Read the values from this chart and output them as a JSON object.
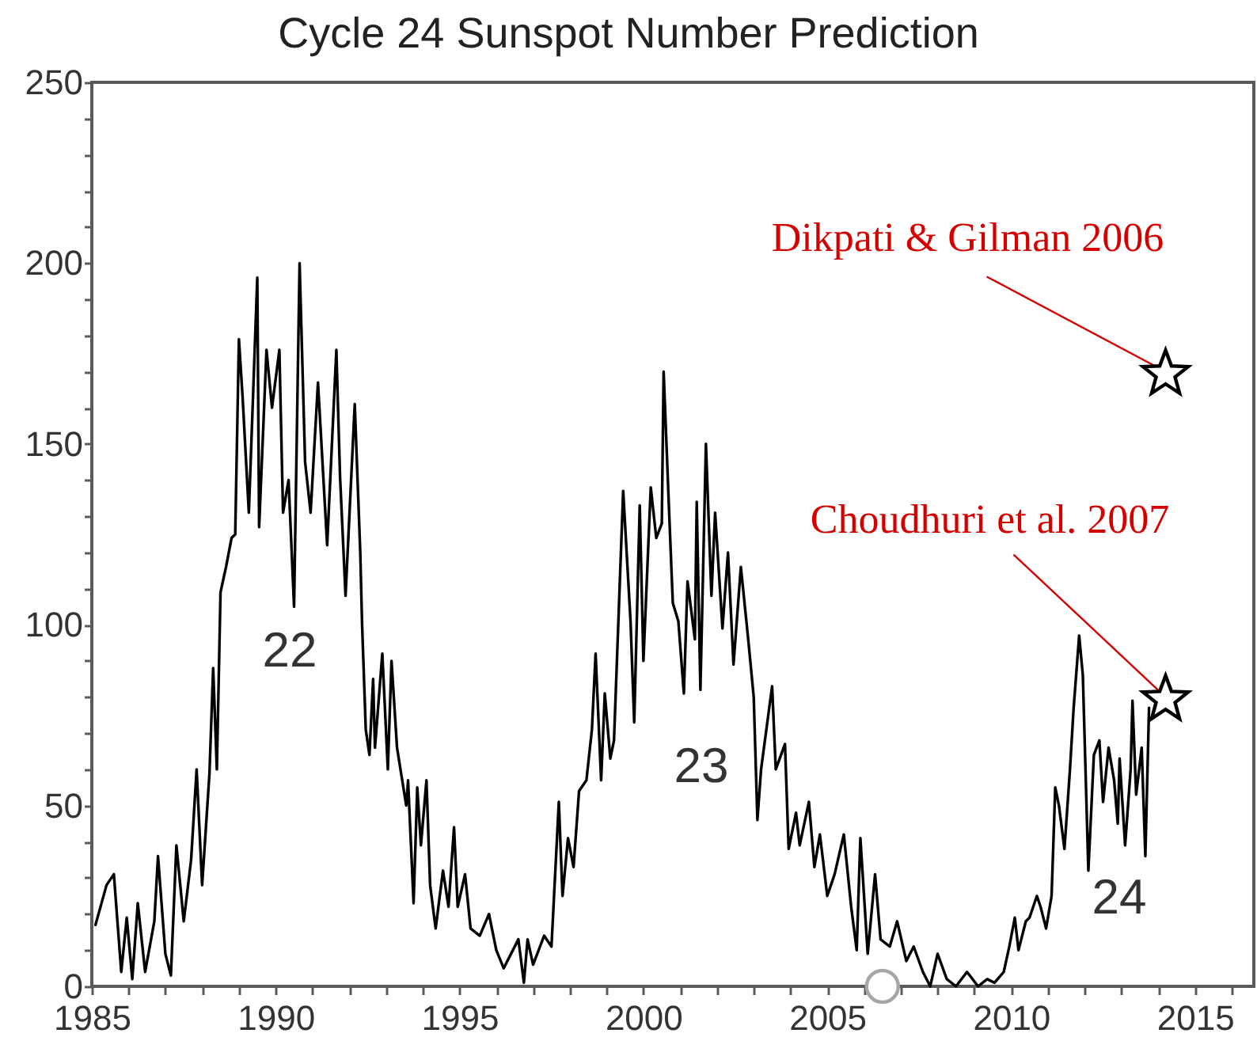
{
  "chart_data": {
    "type": "line",
    "title": "Cycle 24 Sunspot Number Prediction",
    "xlim": [
      1985,
      2016.6
    ],
    "xticks": [
      1985,
      {
        "value": 1986,
        "label": null
      },
      {
        "value": 1987,
        "label": null
      },
      {
        "value": 1988,
        "label": null
      },
      {
        "value": 1989,
        "label": null
      },
      1990,
      {
        "value": 1991,
        "label": null
      },
      {
        "value": 1992,
        "label": null
      },
      {
        "value": 1993,
        "label": null
      },
      {
        "value": 1994,
        "label": null
      },
      1995,
      {
        "value": 1996,
        "label": null
      },
      {
        "value": 1997,
        "label": null
      },
      {
        "value": 1998,
        "label": null
      },
      {
        "value": 1999,
        "label": null
      },
      2000,
      {
        "value": 2001,
        "label": null
      },
      {
        "value": 2002,
        "label": null
      },
      {
        "value": 2003,
        "label": null
      },
      {
        "value": 2004,
        "label": null
      },
      2005,
      {
        "value": 2006,
        "label": null
      },
      {
        "value": 2007,
        "label": null
      },
      {
        "value": 2008,
        "label": null
      },
      {
        "value": 2009,
        "label": null
      },
      2010,
      {
        "value": 2011,
        "label": null
      },
      {
        "value": 2012,
        "label": null
      },
      {
        "value": 2013,
        "label": null
      },
      {
        "value": 2014,
        "label": null
      },
      2015,
      {
        "value": 2016,
        "label": null
      }
    ],
    "ylim": [
      0,
      250
    ],
    "yticks": [
      0,
      {
        "value": 10,
        "label": null
      },
      {
        "value": 20,
        "label": null
      },
      {
        "value": 30,
        "label": null
      },
      {
        "value": 40,
        "label": null
      },
      50,
      {
        "value": 60,
        "label": null
      },
      {
        "value": 70,
        "label": null
      },
      {
        "value": 80,
        "label": null
      },
      {
        "value": 90,
        "label": null
      },
      100,
      {
        "value": 110,
        "label": null
      },
      {
        "value": 120,
        "label": null
      },
      {
        "value": 130,
        "label": null
      },
      {
        "value": 140,
        "label": null
      },
      150,
      {
        "value": 160,
        "label": null
      },
      {
        "value": 170,
        "label": null
      },
      {
        "value": 180,
        "label": null
      },
      {
        "value": 190,
        "label": null
      },
      200,
      {
        "value": 210,
        "label": null
      },
      {
        "value": 220,
        "label": null
      },
      {
        "value": 230,
        "label": null
      },
      {
        "value": 240,
        "label": null
      },
      250
    ],
    "grid": false,
    "legend": false,
    "series": [
      {
        "color": "#000000",
        "marker": "none",
        "x": [
          1985.1,
          1985.4,
          1985.6,
          1985.8,
          1985.95,
          1986.1,
          1986.25,
          1986.45,
          1986.7,
          1986.8,
          1987.0,
          1987.15,
          1987.3,
          1987.5,
          1987.7,
          1987.85,
          1988.0,
          1988.2,
          1988.3,
          1988.4,
          1988.5,
          1988.65,
          1988.8,
          1988.9,
          1989.0,
          1989.1,
          1989.27,
          1989.5,
          1989.55,
          1989.75,
          1989.9,
          1990.1,
          1990.2,
          1990.35,
          1990.5,
          1990.65,
          1990.8,
          1990.95,
          1991.15,
          1991.4,
          1991.65,
          1991.75,
          1991.9,
          1992.15,
          1992.3,
          1992.35,
          1992.45,
          1992.55,
          1992.65,
          1992.7,
          1992.9,
          1993.05,
          1993.15,
          1993.3,
          1993.55,
          1993.6,
          1993.75,
          1993.85,
          1993.95,
          1994.1,
          1994.2,
          1994.35,
          1994.55,
          1994.7,
          1994.85,
          1994.95,
          1995.15,
          1995.3,
          1995.55,
          1995.8,
          1996.0,
          1996.2,
          1996.4,
          1996.6,
          1996.75,
          1996.85,
          1997.0,
          1997.3,
          1997.5,
          1997.7,
          1997.8,
          1997.95,
          1998.1,
          1998.25,
          1998.45,
          1998.6,
          1998.7,
          1998.85,
          1998.95,
          1999.1,
          1999.2,
          1999.45,
          1999.65,
          1999.75,
          1999.9,
          2000.0,
          2000.2,
          2000.35,
          2000.5,
          2000.55,
          2000.7,
          2000.8,
          2000.95,
          2001.1,
          2001.2,
          2001.4,
          2001.45,
          2001.55,
          2001.7,
          2001.85,
          2001.95,
          2002.15,
          2002.3,
          2002.45,
          2002.65,
          2002.85,
          2003.0,
          2003.1,
          2003.2,
          2003.5,
          2003.6,
          2003.85,
          2003.95,
          2004.15,
          2004.25,
          2004.5,
          2004.65,
          2004.8,
          2005.0,
          2005.2,
          2005.45,
          2005.65,
          2005.8,
          2005.9,
          2006.1,
          2006.3,
          2006.45,
          2006.7,
          2006.9,
          2007.15,
          2007.35,
          2007.6,
          2007.8,
          2008.0,
          2008.25,
          2008.5,
          2008.8,
          2009.1,
          2009.35,
          2009.55,
          2009.8,
          2009.95,
          2010.1,
          2010.2,
          2010.4,
          2010.5,
          2010.7,
          2010.8,
          2010.95,
          2011.1,
          2011.2,
          2011.3,
          2011.45,
          2011.6,
          2011.7,
          2011.85,
          2011.95,
          2012.1,
          2012.25,
          2012.4,
          2012.5,
          2012.65,
          2012.8,
          2012.9,
          2012.95,
          2013.1,
          2013.25,
          2013.3,
          2013.4,
          2013.55,
          2013.65,
          2013.75
        ],
        "values": [
          17,
          28,
          31,
          4,
          19,
          2,
          23,
          4,
          18,
          36,
          9,
          3,
          39,
          18,
          35,
          60,
          28,
          59,
          88,
          60,
          109,
          116,
          124,
          125,
          179,
          163,
          131,
          196,
          127,
          176,
          160,
          176,
          131,
          140,
          105,
          200,
          145,
          131,
          167,
          122,
          176,
          141,
          108,
          161,
          120,
          100,
          71,
          64,
          85,
          66,
          92,
          60,
          90,
          66,
          50,
          57,
          23,
          55,
          39,
          57,
          28,
          16,
          32,
          22,
          44,
          22,
          31,
          16,
          14,
          20,
          10,
          5,
          9,
          13,
          1,
          13,
          6,
          14,
          11,
          51,
          25,
          41,
          33,
          54,
          57,
          71,
          92,
          57,
          81,
          63,
          68,
          137,
          101,
          73,
          133,
          90,
          138,
          124,
          128,
          170,
          131,
          106,
          101,
          81,
          112,
          96,
          134,
          82,
          150,
          108,
          131,
          99,
          120,
          89,
          116,
          96,
          80,
          46,
          60,
          83,
          60,
          67,
          38,
          48,
          39,
          51,
          33,
          42,
          25,
          31,
          42,
          22,
          10,
          41,
          9,
          31,
          13,
          11,
          18,
          7,
          11,
          4,
          0,
          9,
          2,
          0,
          4,
          0,
          2,
          1,
          4,
          11,
          19,
          10,
          18,
          19,
          25,
          22,
          16,
          25,
          55,
          50,
          38,
          60,
          77,
          97,
          86,
          32,
          64,
          68,
          51,
          66,
          57,
          45,
          63,
          39,
          60,
          79,
          53,
          66,
          36,
          77
        ]
      },
      {
        "type": "scatter",
        "color": "#a6a6a6",
        "marker": "circle",
        "x": [
          2006.5
        ],
        "values": [
          0
        ]
      },
      {
        "type": "scatter",
        "color": "#000000",
        "marker": "star",
        "x": [
          2014.2,
          2014.2
        ],
        "values": [
          170,
          80
        ]
      }
    ],
    "annotations": [
      {
        "text": "Dikpati & Gilman 2006",
        "x": 2014.2,
        "y": 170
      },
      {
        "text": "Choudhuri et al. 2007",
        "x": 2014.2,
        "y": 80
      },
      "22",
      "23",
      "24"
    ]
  }
}
